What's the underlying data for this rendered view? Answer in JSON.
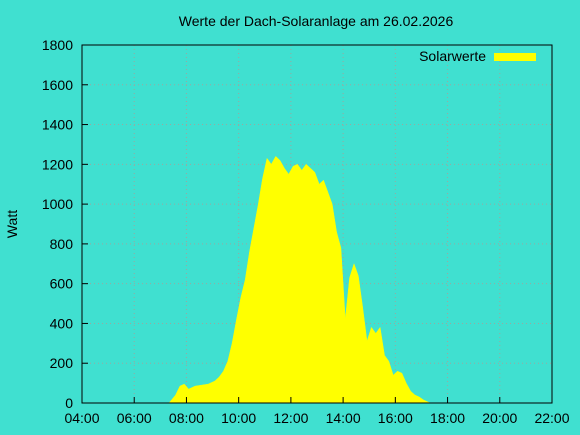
{
  "chart_data": {
    "type": "area",
    "title": "Werte der Dach-Solaranlage am 26.02.2026",
    "xlabel": "",
    "ylabel": "Watt",
    "xlim": [
      "04:00",
      "22:00"
    ],
    "ylim": [
      0,
      1800
    ],
    "x_ticks": [
      "04:00",
      "06:00",
      "08:00",
      "10:00",
      "12:00",
      "14:00",
      "16:00",
      "18:00",
      "20:00",
      "22:00"
    ],
    "y_ticks": [
      "0",
      "200",
      "400",
      "600",
      "800",
      "1000",
      "1200",
      "1400",
      "1600",
      "1800"
    ],
    "grid": true,
    "legend_position": "top-right",
    "background_color": "#40e0d0",
    "series": [
      {
        "name": "Solarwerte",
        "color": "#ffff00",
        "x": [
          "07:20",
          "07:35",
          "07:45",
          "07:55",
          "08:05",
          "08:20",
          "08:35",
          "08:50",
          "09:05",
          "09:15",
          "09:25",
          "09:35",
          "09:45",
          "09:55",
          "10:05",
          "10:15",
          "10:25",
          "10:35",
          "10:45",
          "10:55",
          "11:05",
          "11:15",
          "11:25",
          "11:35",
          "11:45",
          "11:55",
          "12:05",
          "12:15",
          "12:25",
          "12:35",
          "12:45",
          "12:55",
          "13:05",
          "13:15",
          "13:25",
          "13:35",
          "13:45",
          "13:55",
          "14:05",
          "14:15",
          "14:25",
          "14:35",
          "14:45",
          "14:55",
          "15:05",
          "15:15",
          "15:25",
          "15:35",
          "15:45",
          "15:55",
          "16:05",
          "16:15",
          "16:25",
          "16:35",
          "16:45",
          "16:55",
          "17:05",
          "17:15",
          "17:20"
        ],
        "values": [
          0,
          40,
          85,
          95,
          70,
          85,
          90,
          95,
          110,
          130,
          160,
          210,
          300,
          420,
          530,
          620,
          760,
          880,
          1000,
          1130,
          1230,
          1200,
          1240,
          1220,
          1180,
          1150,
          1190,
          1200,
          1170,
          1200,
          1180,
          1160,
          1100,
          1120,
          1060,
          1000,
          860,
          780,
          420,
          630,
          700,
          640,
          480,
          310,
          380,
          350,
          380,
          240,
          210,
          140,
          160,
          150,
          100,
          60,
          40,
          30,
          15,
          5,
          0
        ]
      }
    ]
  }
}
